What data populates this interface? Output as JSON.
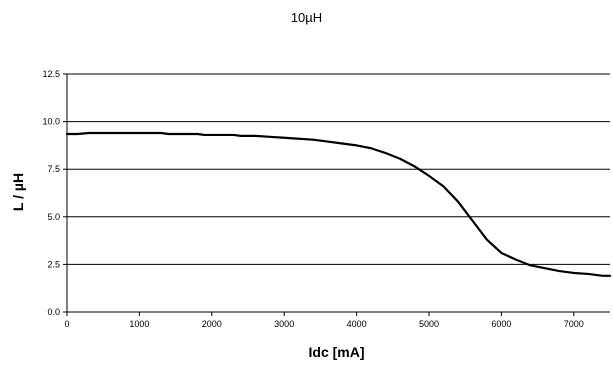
{
  "chart_data": {
    "type": "line",
    "title": "10µH",
    "xlabel": "Idc [mA]",
    "ylabel": "L / µH",
    "xlim": [
      0,
      7500
    ],
    "ylim": [
      0,
      12.5
    ],
    "x_ticks": [
      "0",
      "1000",
      "2000",
      "3000",
      "4000",
      "5000",
      "6000",
      "7000"
    ],
    "y_ticks": [
      "0.0",
      "2.5",
      "5.0",
      "7.5",
      "10.0",
      "12.5"
    ],
    "grid": "horizontal",
    "line_color": "#000000",
    "series": [
      {
        "x": [
          0,
          150,
          300,
          500,
          800,
          1000,
          1300,
          1400,
          1800,
          1900,
          2000,
          2300,
          2400,
          2600,
          2800,
          3000,
          3200,
          3400,
          3600,
          3800,
          4000,
          4200,
          4400,
          4600,
          4800,
          5000,
          5200,
          5400,
          5600,
          5800,
          6000,
          6200,
          6400,
          6600,
          6800,
          7000,
          7200,
          7400,
          7500
        ],
        "y": [
          9.35,
          9.35,
          9.4,
          9.4,
          9.4,
          9.4,
          9.4,
          9.35,
          9.35,
          9.3,
          9.3,
          9.3,
          9.25,
          9.25,
          9.2,
          9.15,
          9.1,
          9.05,
          8.95,
          8.85,
          8.75,
          8.6,
          8.35,
          8.05,
          7.65,
          7.15,
          6.6,
          5.8,
          4.8,
          3.8,
          3.1,
          2.75,
          2.45,
          2.3,
          2.15,
          2.05,
          2.0,
          1.9,
          1.9
        ]
      }
    ]
  }
}
